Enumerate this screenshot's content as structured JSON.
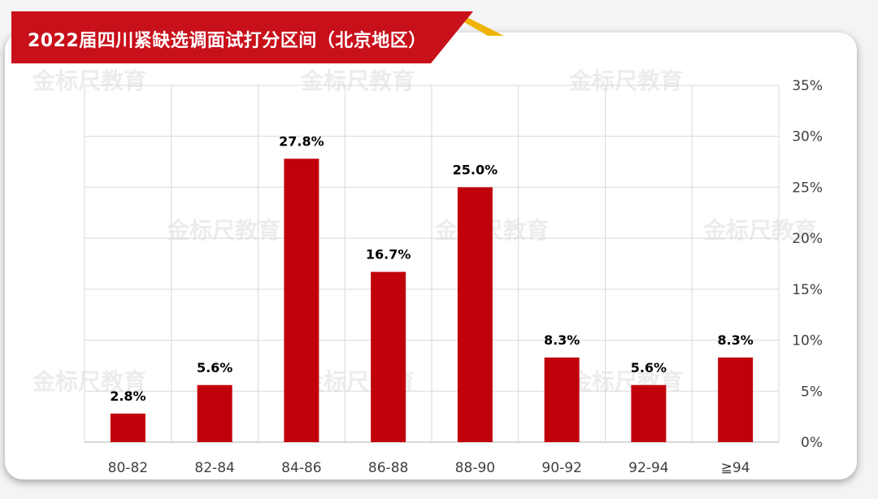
{
  "title": "2022届四川紧缺选调面试打分区间（北京地区）",
  "watermark_text": "金标尺教育",
  "colors": {
    "bar": "#c0000b",
    "banner": "#c8101a",
    "banner_accent": "#f0b400",
    "grid": "#d9d9d9"
  },
  "chart_data": {
    "type": "bar",
    "categories": [
      "80-82",
      "82-84",
      "84-86",
      "86-88",
      "88-90",
      "90-92",
      "92-94",
      "≧94"
    ],
    "values": [
      2.8,
      5.6,
      27.8,
      16.7,
      25.0,
      8.3,
      5.6,
      8.3
    ],
    "data_labels": [
      "2.8%",
      "5.6%",
      "27.8%",
      "16.7%",
      "25.0%",
      "8.3%",
      "5.6%",
      "8.3%"
    ],
    "value_axis": {
      "position": "right",
      "ticks": [
        "0%",
        "5%",
        "10%",
        "15%",
        "20%",
        "25%",
        "30%",
        "35%"
      ],
      "tick_values": [
        0,
        5,
        10,
        15,
        20,
        25,
        30,
        35
      ],
      "ylim": [
        0,
        35
      ]
    },
    "grid": true,
    "legend": "none"
  }
}
